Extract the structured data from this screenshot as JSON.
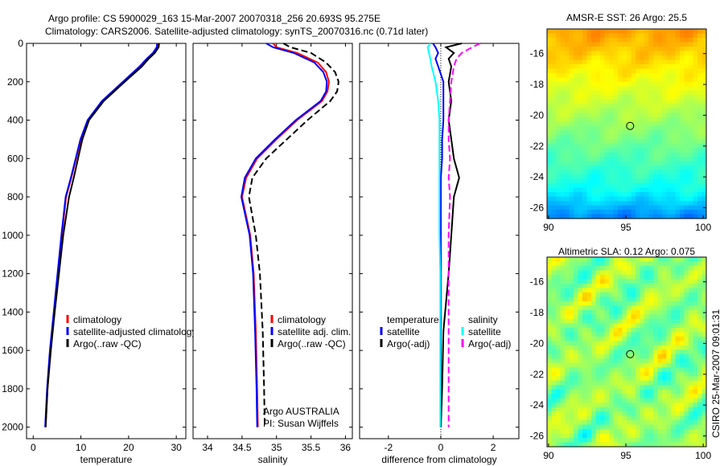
{
  "title": {
    "line1": "Argo profile: CS 5900029_163 15-Mar-2007 20070318_256 20.693S 95.275E",
    "line2": "Climatology: CARS2006. Satellite-adjusted climatology: synTS_20070316.nc (0.71d later)"
  },
  "footer_stamp": "CSIRO 25-Mar-2007 09:01:31",
  "chart_data": [
    {
      "type": "line",
      "id": "temperature",
      "xlabel": "temperature",
      "xlim": [
        -1.4,
        32
      ],
      "ylim": [
        0,
        2060
      ],
      "xticks": [
        0,
        10,
        20,
        30
      ],
      "yticks": [
        0,
        200,
        400,
        600,
        800,
        1000,
        1200,
        1400,
        1600,
        1800,
        2000
      ],
      "legend": [
        "climatology",
        "satellite-adjusted climatology",
        "Argo(..raw -QC)"
      ],
      "depth": [
        0,
        20,
        50,
        80,
        120,
        200,
        300,
        400,
        500,
        600,
        700,
        800,
        1000,
        1200,
        1400,
        1600,
        1800,
        2000
      ],
      "series": [
        {
          "name": "climatology",
          "color": "#ff0000",
          "style": "solid",
          "values": [
            26.2,
            26.1,
            25.2,
            24.0,
            22.5,
            19.0,
            14.5,
            11.5,
            10.0,
            9.0,
            8.0,
            6.9,
            6.0,
            5.2,
            4.4,
            3.6,
            3.0,
            2.6
          ]
        },
        {
          "name": "satellite-adjusted climatology",
          "color": "#0000ff",
          "style": "solid",
          "values": [
            26.0,
            25.9,
            25.1,
            23.8,
            22.3,
            18.8,
            14.4,
            11.4,
            9.9,
            8.9,
            7.9,
            6.8,
            5.9,
            5.1,
            4.3,
            3.5,
            2.9,
            2.5
          ]
        },
        {
          "name": "Argo(..raw -QC)",
          "color": "#000000",
          "style": "solid",
          "values": [
            26.4,
            26.3,
            25.5,
            24.2,
            22.8,
            19.2,
            14.8,
            11.7,
            10.3,
            9.4,
            8.5,
            7.5,
            6.3,
            5.4,
            4.5,
            3.7,
            3.0,
            2.6
          ]
        }
      ]
    },
    {
      "type": "line",
      "id": "salinity",
      "xlabel": "salinity",
      "xlim": [
        33.79,
        36.1
      ],
      "ylim": [
        0,
        2060
      ],
      "xticks": [
        34,
        34.5,
        35,
        35.5,
        36
      ],
      "legend": [
        "climatology",
        "satellite adj. clim.",
        "Argo(..raw -QC)"
      ],
      "annotation": [
        "Argo AUSTRALIA",
        "PI: Susan Wijffels"
      ],
      "depth": [
        0,
        20,
        50,
        100,
        150,
        200,
        250,
        300,
        400,
        500,
        600,
        700,
        800,
        1000,
        1200,
        1500,
        1800,
        2000
      ],
      "series": [
        {
          "name": "climatology",
          "color": "#ff0000",
          "style": "solid",
          "values": [
            34.95,
            35.0,
            35.3,
            35.6,
            35.72,
            35.76,
            35.74,
            35.66,
            35.3,
            35.0,
            34.72,
            34.56,
            34.5,
            34.62,
            34.67,
            34.7,
            34.72,
            34.73
          ]
        },
        {
          "name": "satellite adj. clim.",
          "color": "#0000ff",
          "style": "solid",
          "values": [
            34.85,
            34.95,
            35.25,
            35.55,
            35.68,
            35.73,
            35.72,
            35.64,
            35.28,
            34.98,
            34.7,
            34.54,
            34.49,
            34.61,
            34.66,
            34.69,
            34.71,
            34.72
          ]
        },
        {
          "name": "Argo(..raw -QC)",
          "color": "#000000",
          "style": "dashed",
          "values": [
            35.1,
            35.2,
            35.5,
            35.72,
            35.85,
            35.9,
            35.88,
            35.78,
            35.45,
            35.15,
            34.85,
            34.65,
            34.6,
            34.7,
            34.76,
            34.8,
            34.82,
            34.83
          ]
        }
      ]
    },
    {
      "type": "line",
      "id": "difference",
      "xlabel": "difference from climatology",
      "xlim": [
        -3.1,
        2.98
      ],
      "ylim": [
        0,
        2060
      ],
      "xticks": [
        -2,
        0,
        2
      ],
      "legend": {
        "temperature_heading": "temperature",
        "salinity_heading": "salinity",
        "items": [
          "satellite",
          "Argo(-adj)",
          "satellite",
          "Argo(-adj)"
        ]
      },
      "depth": [
        0,
        20,
        50,
        80,
        120,
        200,
        300,
        400,
        500,
        600,
        700,
        800,
        1000,
        1200,
        1500,
        1800,
        2000
      ],
      "series": [
        {
          "name": "temperature satellite",
          "color": "#0000ff",
          "style": "solid",
          "values": [
            -0.3,
            -0.2,
            -0.1,
            -0.2,
            -0.1,
            0.1,
            0.1,
            0.1,
            0.05,
            0.05,
            0.0,
            0.0,
            0.0,
            0.0,
            0.0,
            0.0,
            0.0
          ]
        },
        {
          "name": "temperature Argo(-adj)",
          "color": "#000000",
          "style": "solid",
          "values": [
            0.8,
            0.2,
            0.5,
            0.3,
            0.4,
            0.3,
            0.4,
            0.3,
            0.4,
            0.5,
            0.7,
            0.5,
            0.4,
            0.3,
            0.1,
            0.05,
            0.0
          ]
        },
        {
          "name": "salinity satellite",
          "color": "#00ffff",
          "style": "solid",
          "values": [
            -0.4,
            -0.5,
            -0.45,
            -0.4,
            -0.35,
            -0.2,
            -0.1,
            -0.05,
            -0.05,
            -0.05,
            -0.05,
            -0.05,
            -0.05,
            -0.02,
            -0.02,
            -0.02,
            -0.02
          ]
        },
        {
          "name": "salinity Argo(-adj)",
          "color": "#ff00ff",
          "style": "dashed",
          "values": [
            1.5,
            1.2,
            0.8,
            0.6,
            0.5,
            0.4,
            0.35,
            0.3,
            0.3,
            0.35,
            0.3,
            0.35,
            0.3,
            0.3,
            0.3,
            0.3,
            0.3
          ]
        }
      ]
    },
    {
      "type": "heatmap",
      "id": "sst-map",
      "title": "AMSR-E SST: 26 Argo: 25.5",
      "xlim": [
        89.9,
        100.2
      ],
      "ylim": [
        -26.7,
        -14.4
      ],
      "xticks": [
        90,
        95,
        100
      ],
      "yticks": [
        -16,
        -18,
        -20,
        -22,
        -24,
        -26
      ],
      "marker": {
        "lon": 95.275,
        "lat": -20.693
      }
    },
    {
      "type": "heatmap",
      "id": "sla-map",
      "title": "Altimetric SLA: 0.12 Argo: 0.075",
      "xlim": [
        89.9,
        100.2
      ],
      "ylim": [
        -26.7,
        -14.4
      ],
      "xticks": [
        90,
        95,
        100
      ],
      "yticks": [
        -16,
        -18,
        -20,
        -22,
        -24,
        -26
      ],
      "marker": {
        "lon": 95.275,
        "lat": -20.693
      }
    }
  ]
}
